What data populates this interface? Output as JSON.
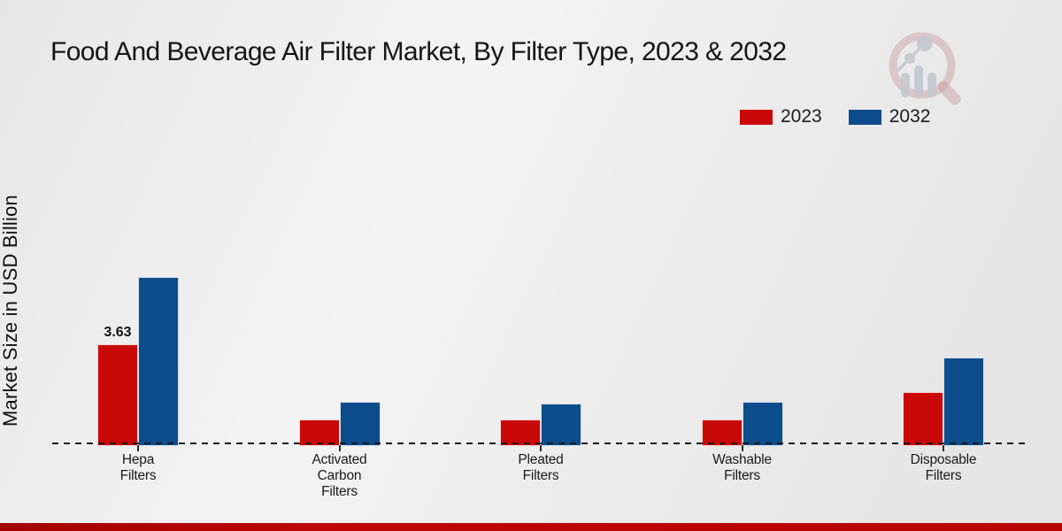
{
  "title": "Food And Beverage Air Filter Market, By Filter Type, 2023 & 2032",
  "ylabel": "Market Size in USD Billion",
  "legend": {
    "items": [
      {
        "label": "2023",
        "color": "#c90808"
      },
      {
        "label": "2032",
        "color": "#0d4d8c"
      }
    ]
  },
  "colors": {
    "series_2023": "#c90808",
    "series_2032": "#0d4d8c",
    "bottom_strip": "#b80404",
    "background": "#ececec",
    "text": "#1a1a1a"
  },
  "branding": {
    "logo": "magnifier-bar-chart-logo"
  },
  "chart_data": {
    "type": "bar",
    "title": "Food And Beverage Air Filter Market, By Filter Type, 2023 & 2032",
    "xlabel": "",
    "ylabel": "Market Size in USD Billion",
    "categories": [
      "Hepa Filters",
      "Activated Carbon Filters",
      "Pleated Filters",
      "Washable Filters",
      "Disposable Filters"
    ],
    "series": [
      {
        "name": "2023",
        "color": "#c90808",
        "values": [
          3.63,
          0.95,
          0.93,
          0.95,
          1.93
        ]
      },
      {
        "name": "2032",
        "color": "#0d4d8c",
        "values": [
          6.0,
          1.58,
          1.52,
          1.58,
          3.15
        ]
      }
    ],
    "value_labels": [
      {
        "series_index": 0,
        "category_index": 0,
        "text": "3.63"
      }
    ],
    "ylim": [
      0,
      7
    ],
    "y_axis_ticks_visible": false,
    "grid": false,
    "baseline_style": "dashed",
    "legend_position": "top-right"
  }
}
